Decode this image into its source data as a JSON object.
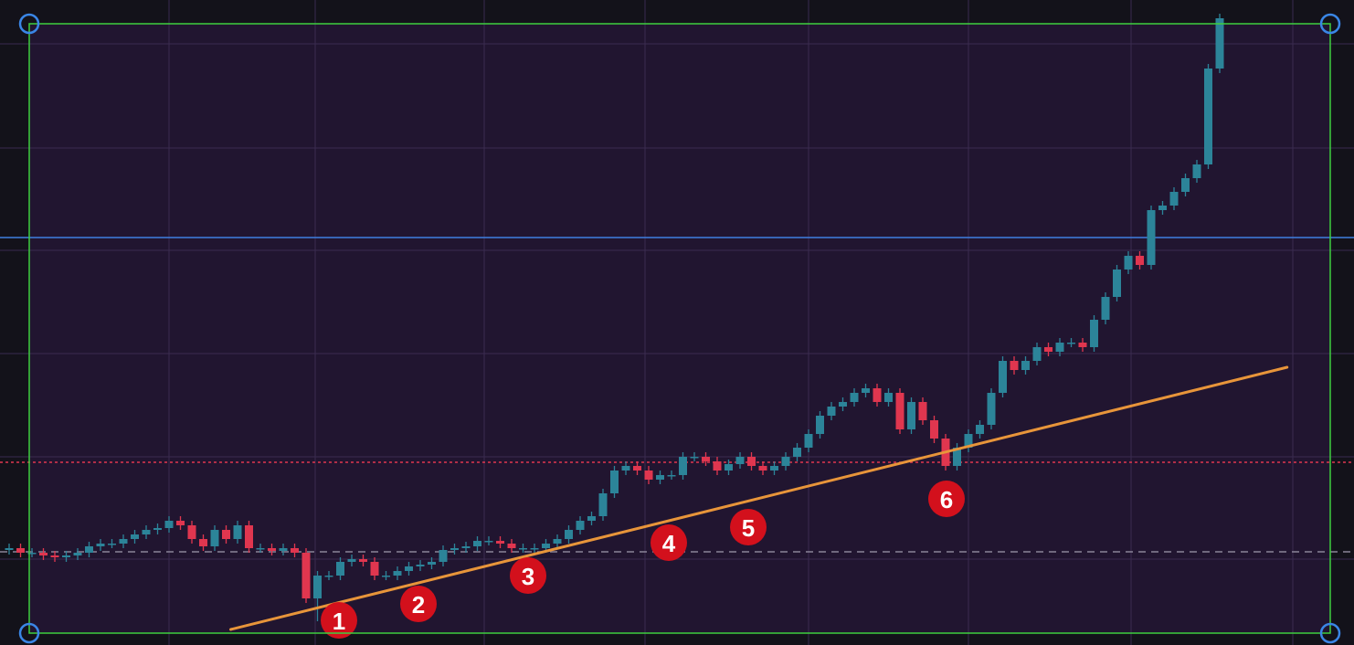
{
  "chart_data": {
    "type": "candlestick",
    "up_color": "#2c8499",
    "down_color": "#e0364f",
    "ylim": [
      0,
      706
    ],
    "open": [
      104,
      106,
      101,
      101,
      98,
      96,
      98,
      101,
      108,
      111,
      111,
      116,
      121,
      126,
      128,
      136,
      131,
      116,
      108,
      126,
      116,
      131,
      106,
      106,
      103,
      106,
      101,
      51,
      76,
      76,
      91,
      94,
      91,
      76,
      76,
      81,
      86,
      88,
      91,
      104,
      106,
      108,
      114,
      114,
      111,
      106,
      106,
      106,
      111,
      116,
      126,
      136,
      141,
      166,
      191,
      196,
      191,
      181,
      186,
      186,
      206,
      206,
      201,
      191,
      198,
      206,
      196,
      191,
      196,
      206,
      216,
      231,
      251,
      261,
      266,
      276,
      281,
      266,
      276,
      236,
      266,
      246,
      226,
      196,
      216,
      231,
      241,
      276,
      311,
      301,
      311,
      326,
      321,
      331,
      331,
      326,
      356,
      381,
      411,
      426,
      416,
      476,
      481,
      496,
      511,
      526,
      631
    ],
    "high": [
      111,
      111,
      106,
      106,
      103,
      103,
      106,
      113,
      116,
      116,
      121,
      126,
      131,
      133,
      141,
      141,
      136,
      121,
      131,
      131,
      136,
      136,
      111,
      111,
      111,
      111,
      106,
      81,
      81,
      96,
      99,
      99,
      96,
      81,
      86,
      91,
      93,
      96,
      109,
      111,
      113,
      119,
      119,
      119,
      116,
      111,
      111,
      116,
      121,
      131,
      141,
      146,
      171,
      196,
      201,
      201,
      196,
      191,
      191,
      211,
      211,
      211,
      206,
      203,
      211,
      211,
      201,
      201,
      211,
      221,
      236,
      256,
      266,
      271,
      281,
      286,
      286,
      281,
      281,
      271,
      271,
      251,
      231,
      221,
      236,
      246,
      281,
      316,
      316,
      316,
      331,
      331,
      336,
      336,
      336,
      361,
      386,
      416,
      431,
      431,
      481,
      486,
      501,
      516,
      531,
      636,
      691
    ],
    "low": [
      99,
      96,
      96,
      93,
      91,
      91,
      93,
      96,
      103,
      106,
      106,
      111,
      116,
      121,
      123,
      126,
      111,
      103,
      103,
      111,
      111,
      101,
      101,
      98,
      98,
      96,
      46,
      26,
      71,
      71,
      86,
      86,
      71,
      71,
      71,
      76,
      81,
      83,
      86,
      99,
      101,
      103,
      109,
      106,
      101,
      101,
      101,
      101,
      106,
      111,
      121,
      131,
      136,
      161,
      186,
      186,
      176,
      176,
      181,
      181,
      201,
      196,
      186,
      186,
      193,
      191,
      186,
      186,
      191,
      201,
      211,
      226,
      246,
      256,
      261,
      271,
      261,
      261,
      231,
      231,
      241,
      221,
      191,
      191,
      211,
      226,
      236,
      271,
      296,
      296,
      306,
      316,
      316,
      326,
      321,
      321,
      351,
      376,
      406,
      411,
      411,
      471,
      476,
      491,
      506,
      521,
      626
    ],
    "close": [
      106,
      101,
      101,
      98,
      96,
      98,
      101,
      108,
      111,
      111,
      116,
      121,
      126,
      128,
      136,
      131,
      116,
      108,
      126,
      116,
      131,
      106,
      106,
      103,
      106,
      101,
      51,
      76,
      76,
      91,
      94,
      91,
      76,
      76,
      81,
      86,
      88,
      91,
      104,
      106,
      108,
      114,
      114,
      111,
      106,
      106,
      106,
      111,
      116,
      126,
      136,
      141,
      166,
      191,
      196,
      191,
      181,
      186,
      186,
      206,
      206,
      201,
      191,
      198,
      206,
      196,
      191,
      196,
      206,
      216,
      231,
      251,
      261,
      266,
      276,
      281,
      266,
      276,
      236,
      266,
      246,
      226,
      196,
      216,
      231,
      241,
      276,
      311,
      301,
      311,
      326,
      321,
      331,
      331,
      326,
      356,
      381,
      411,
      426,
      416,
      476,
      481,
      496,
      511,
      526,
      631,
      686
    ],
    "levels": [
      {
        "value": 446,
        "color": "#3f7fe0",
        "style": "solid"
      },
      {
        "value": 200,
        "color": "#e0364f",
        "style": "dotted"
      },
      {
        "value": 102,
        "color": "#8a8398",
        "style": "dashed"
      }
    ],
    "trendline": {
      "x": [
        19.4,
        111.9
      ],
      "values": [
        17,
        304
      ],
      "color": "#e8953a"
    },
    "markers": [
      "1",
      "2",
      "3",
      "4",
      "5",
      "6"
    ],
    "marker_color": "#d3101c"
  }
}
